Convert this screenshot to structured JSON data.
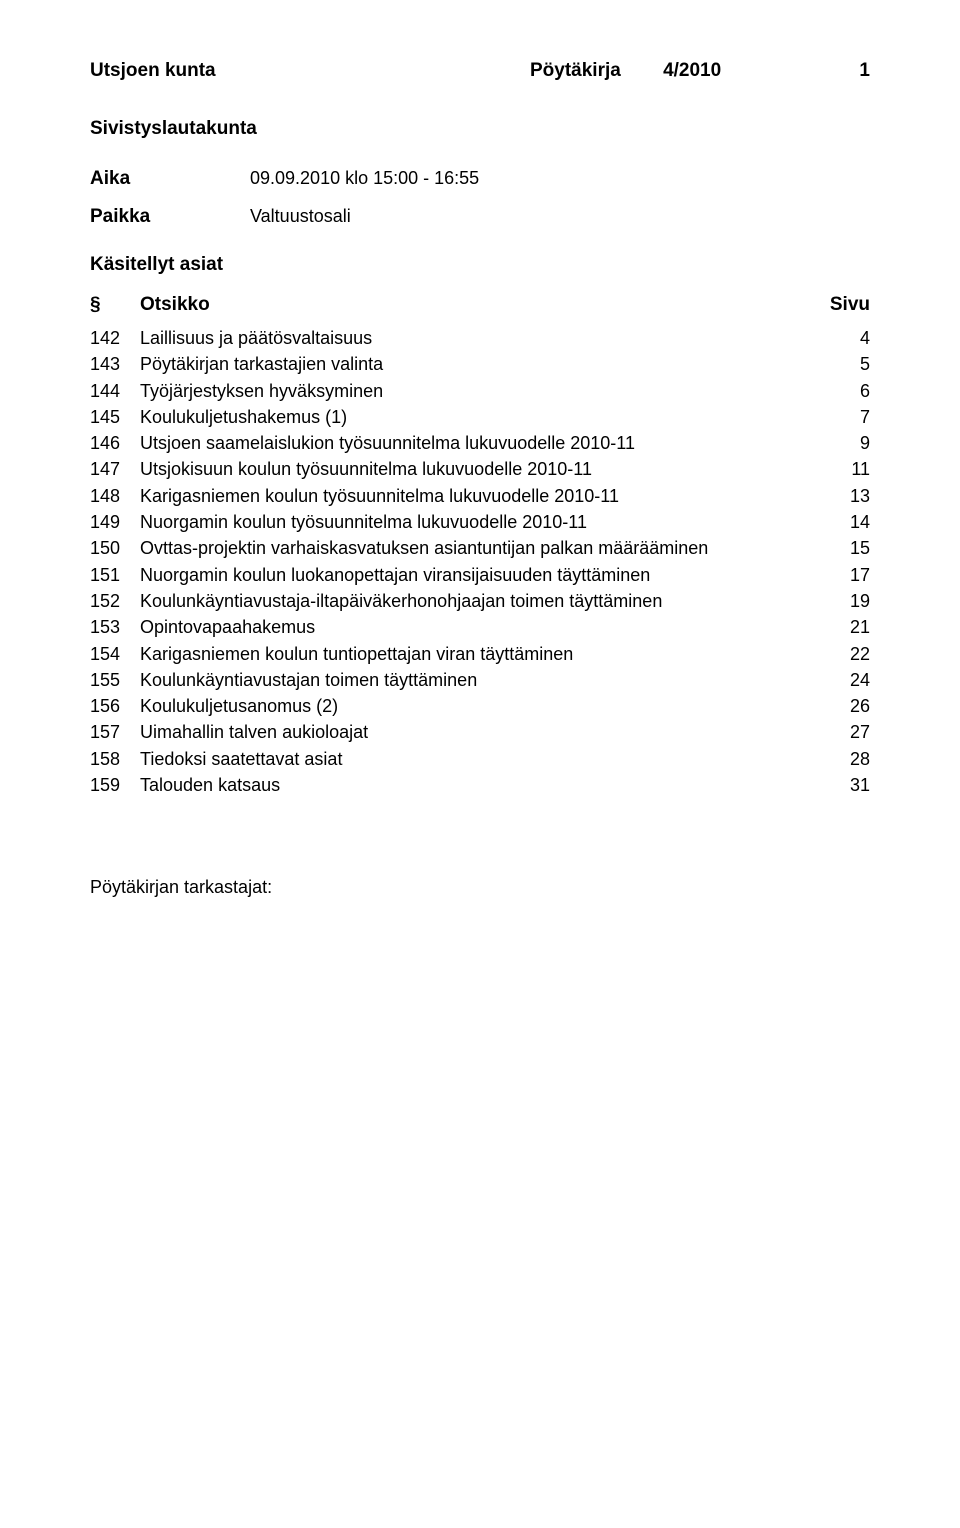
{
  "header": {
    "municipality": "Utsjoen kunta",
    "doc_type": "Pöytäkirja",
    "doc_num": "4/2010",
    "page_num": "1"
  },
  "board": "Sivistyslautakunta",
  "meta": {
    "time_label": "Aika",
    "time_value": "09.09.2010 klo 15:00 - 16:55",
    "place_label": "Paikka",
    "place_value": "Valtuustosali"
  },
  "section_title": "Käsitellyt asiat",
  "toc": {
    "col_sym": "§",
    "col_title": "Otsikko",
    "col_page": "Sivu",
    "rows": [
      {
        "num": "142",
        "title": "Laillisuus ja päätösvaltaisuus",
        "page": "4"
      },
      {
        "num": "143",
        "title": "Pöytäkirjan tarkastajien valinta",
        "page": "5"
      },
      {
        "num": "144",
        "title": "Työjärjestyksen hyväksyminen",
        "page": "6"
      },
      {
        "num": "145",
        "title": "Koulukuljetushakemus (1)",
        "page": "7"
      },
      {
        "num": "146",
        "title": "Utsjoen saamelaislukion työsuunnitelma lukuvuodelle 2010-11",
        "page": "9"
      },
      {
        "num": "147",
        "title": "Utsjokisuun koulun työsuunnitelma lukuvuodelle 2010-11",
        "page": "11"
      },
      {
        "num": "148",
        "title": "Karigasniemen koulun työsuunnitelma lukuvuodelle 2010-11",
        "page": "13"
      },
      {
        "num": "149",
        "title": "Nuorgamin koulun työsuunnitelma lukuvuodelle 2010-11",
        "page": "14"
      },
      {
        "num": "150",
        "title": "Ovttas-projektin varhaiskasvatuksen asiantuntijan palkan määrääminen",
        "page": "15"
      },
      {
        "num": "151",
        "title": "Nuorgamin koulun luokanopettajan viransijaisuuden täyttäminen",
        "page": "17"
      },
      {
        "num": "152",
        "title": "Koulunkäyntiavustaja-iltapäiväkerhonohjaajan toimen täyttäminen",
        "page": "19"
      },
      {
        "num": "153",
        "title": "Opintovapaahakemus",
        "page": "21"
      },
      {
        "num": "154",
        "title": "Karigasniemen koulun tuntiopettajan viran täyttäminen",
        "page": "22"
      },
      {
        "num": "155",
        "title": "Koulunkäyntiavustajan toimen täyttäminen",
        "page": "24"
      },
      {
        "num": "156",
        "title": "Koulukuljetusanomus (2)",
        "page": "26"
      },
      {
        "num": "157",
        "title": "Uimahallin talven aukioloajat",
        "page": "27"
      },
      {
        "num": "158",
        "title": "Tiedoksi saatettavat asiat",
        "page": "28"
      },
      {
        "num": "159",
        "title": "Talouden katsaus",
        "page": "31"
      }
    ]
  },
  "footer": "Pöytäkirjan tarkastajat:"
}
